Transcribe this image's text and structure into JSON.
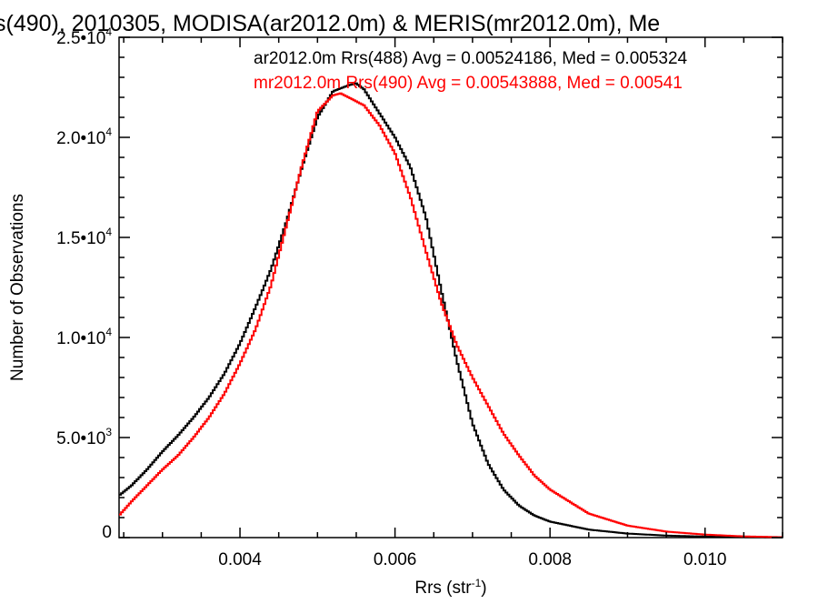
{
  "chart_data": {
    "type": "line",
    "title": "s(490), 2010305, MODISA(ar2012.0m) & MERIS(mr2012.0m), Me",
    "xlabel": "Rrs (str",
    "xlabel_sup": "-1",
    "xlabel_end": ")",
    "ylabel": "Number of Observations",
    "xlim": [
      0.00244,
      0.011
    ],
    "ylim": [
      0,
      25000
    ],
    "x_ticks": [
      {
        "value": 0.004,
        "label": "0.004"
      },
      {
        "value": 0.006,
        "label": "0.006"
      },
      {
        "value": 0.008,
        "label": "0.008"
      },
      {
        "value": 0.01,
        "label": "0.010"
      }
    ],
    "y_ticks": [
      {
        "value": 0,
        "mantissa": "0",
        "exp": ""
      },
      {
        "value": 5000,
        "mantissa": "5.0•10",
        "exp": "3"
      },
      {
        "value": 10000,
        "mantissa": "1.0•10",
        "exp": "4"
      },
      {
        "value": 15000,
        "mantissa": "1.5•10",
        "exp": "4"
      },
      {
        "value": 20000,
        "mantissa": "2.0•10",
        "exp": "4"
      },
      {
        "value": 25000,
        "mantissa": "2.5•10",
        "exp": "4"
      }
    ],
    "grid": false,
    "legend_position": "top-right",
    "series": [
      {
        "name": "ar2012.0m Rrs(488) Avg = 0.00524186, Med = 0.005324",
        "color": "#000000",
        "x": [
          0.00244,
          0.0026,
          0.0028,
          0.003,
          0.0032,
          0.0034,
          0.0036,
          0.0038,
          0.004,
          0.0042,
          0.0044,
          0.0046,
          0.0048,
          0.005,
          0.0052,
          0.0054,
          0.0055,
          0.0056,
          0.0058,
          0.006,
          0.0062,
          0.0064,
          0.0066,
          0.0068,
          0.007,
          0.0072,
          0.0074,
          0.0076,
          0.0078,
          0.008,
          0.0085,
          0.009,
          0.0095,
          0.01,
          0.0105,
          0.011
        ],
        "y": [
          2100,
          2600,
          3400,
          4300,
          5100,
          6000,
          7000,
          8200,
          9700,
          11500,
          13400,
          15800,
          18500,
          21000,
          22300,
          22600,
          22700,
          22400,
          21200,
          20000,
          18500,
          16000,
          12300,
          8800,
          5700,
          3700,
          2400,
          1600,
          1100,
          800,
          400,
          200,
          100,
          50,
          20,
          10
        ]
      },
      {
        "name": "mr2012.0m Rrs(490) Avg = 0.00543888, Med = 0.00541",
        "color": "#ff0000",
        "x": [
          0.00244,
          0.0026,
          0.0028,
          0.003,
          0.0032,
          0.0034,
          0.0036,
          0.0038,
          0.004,
          0.0042,
          0.0044,
          0.0046,
          0.0048,
          0.005,
          0.0052,
          0.0053,
          0.0054,
          0.0056,
          0.0058,
          0.006,
          0.0062,
          0.0064,
          0.0066,
          0.0068,
          0.007,
          0.0072,
          0.0074,
          0.0076,
          0.0078,
          0.008,
          0.0085,
          0.009,
          0.0095,
          0.01,
          0.0105,
          0.011
        ],
        "y": [
          1100,
          1800,
          2600,
          3400,
          4100,
          5000,
          6000,
          7200,
          8700,
          10400,
          12600,
          15600,
          18600,
          21300,
          22100,
          22200,
          22000,
          21600,
          20600,
          19200,
          17000,
          14300,
          11700,
          9600,
          8000,
          6600,
          5200,
          4100,
          3100,
          2400,
          1200,
          600,
          300,
          150,
          60,
          20
        ]
      }
    ]
  }
}
